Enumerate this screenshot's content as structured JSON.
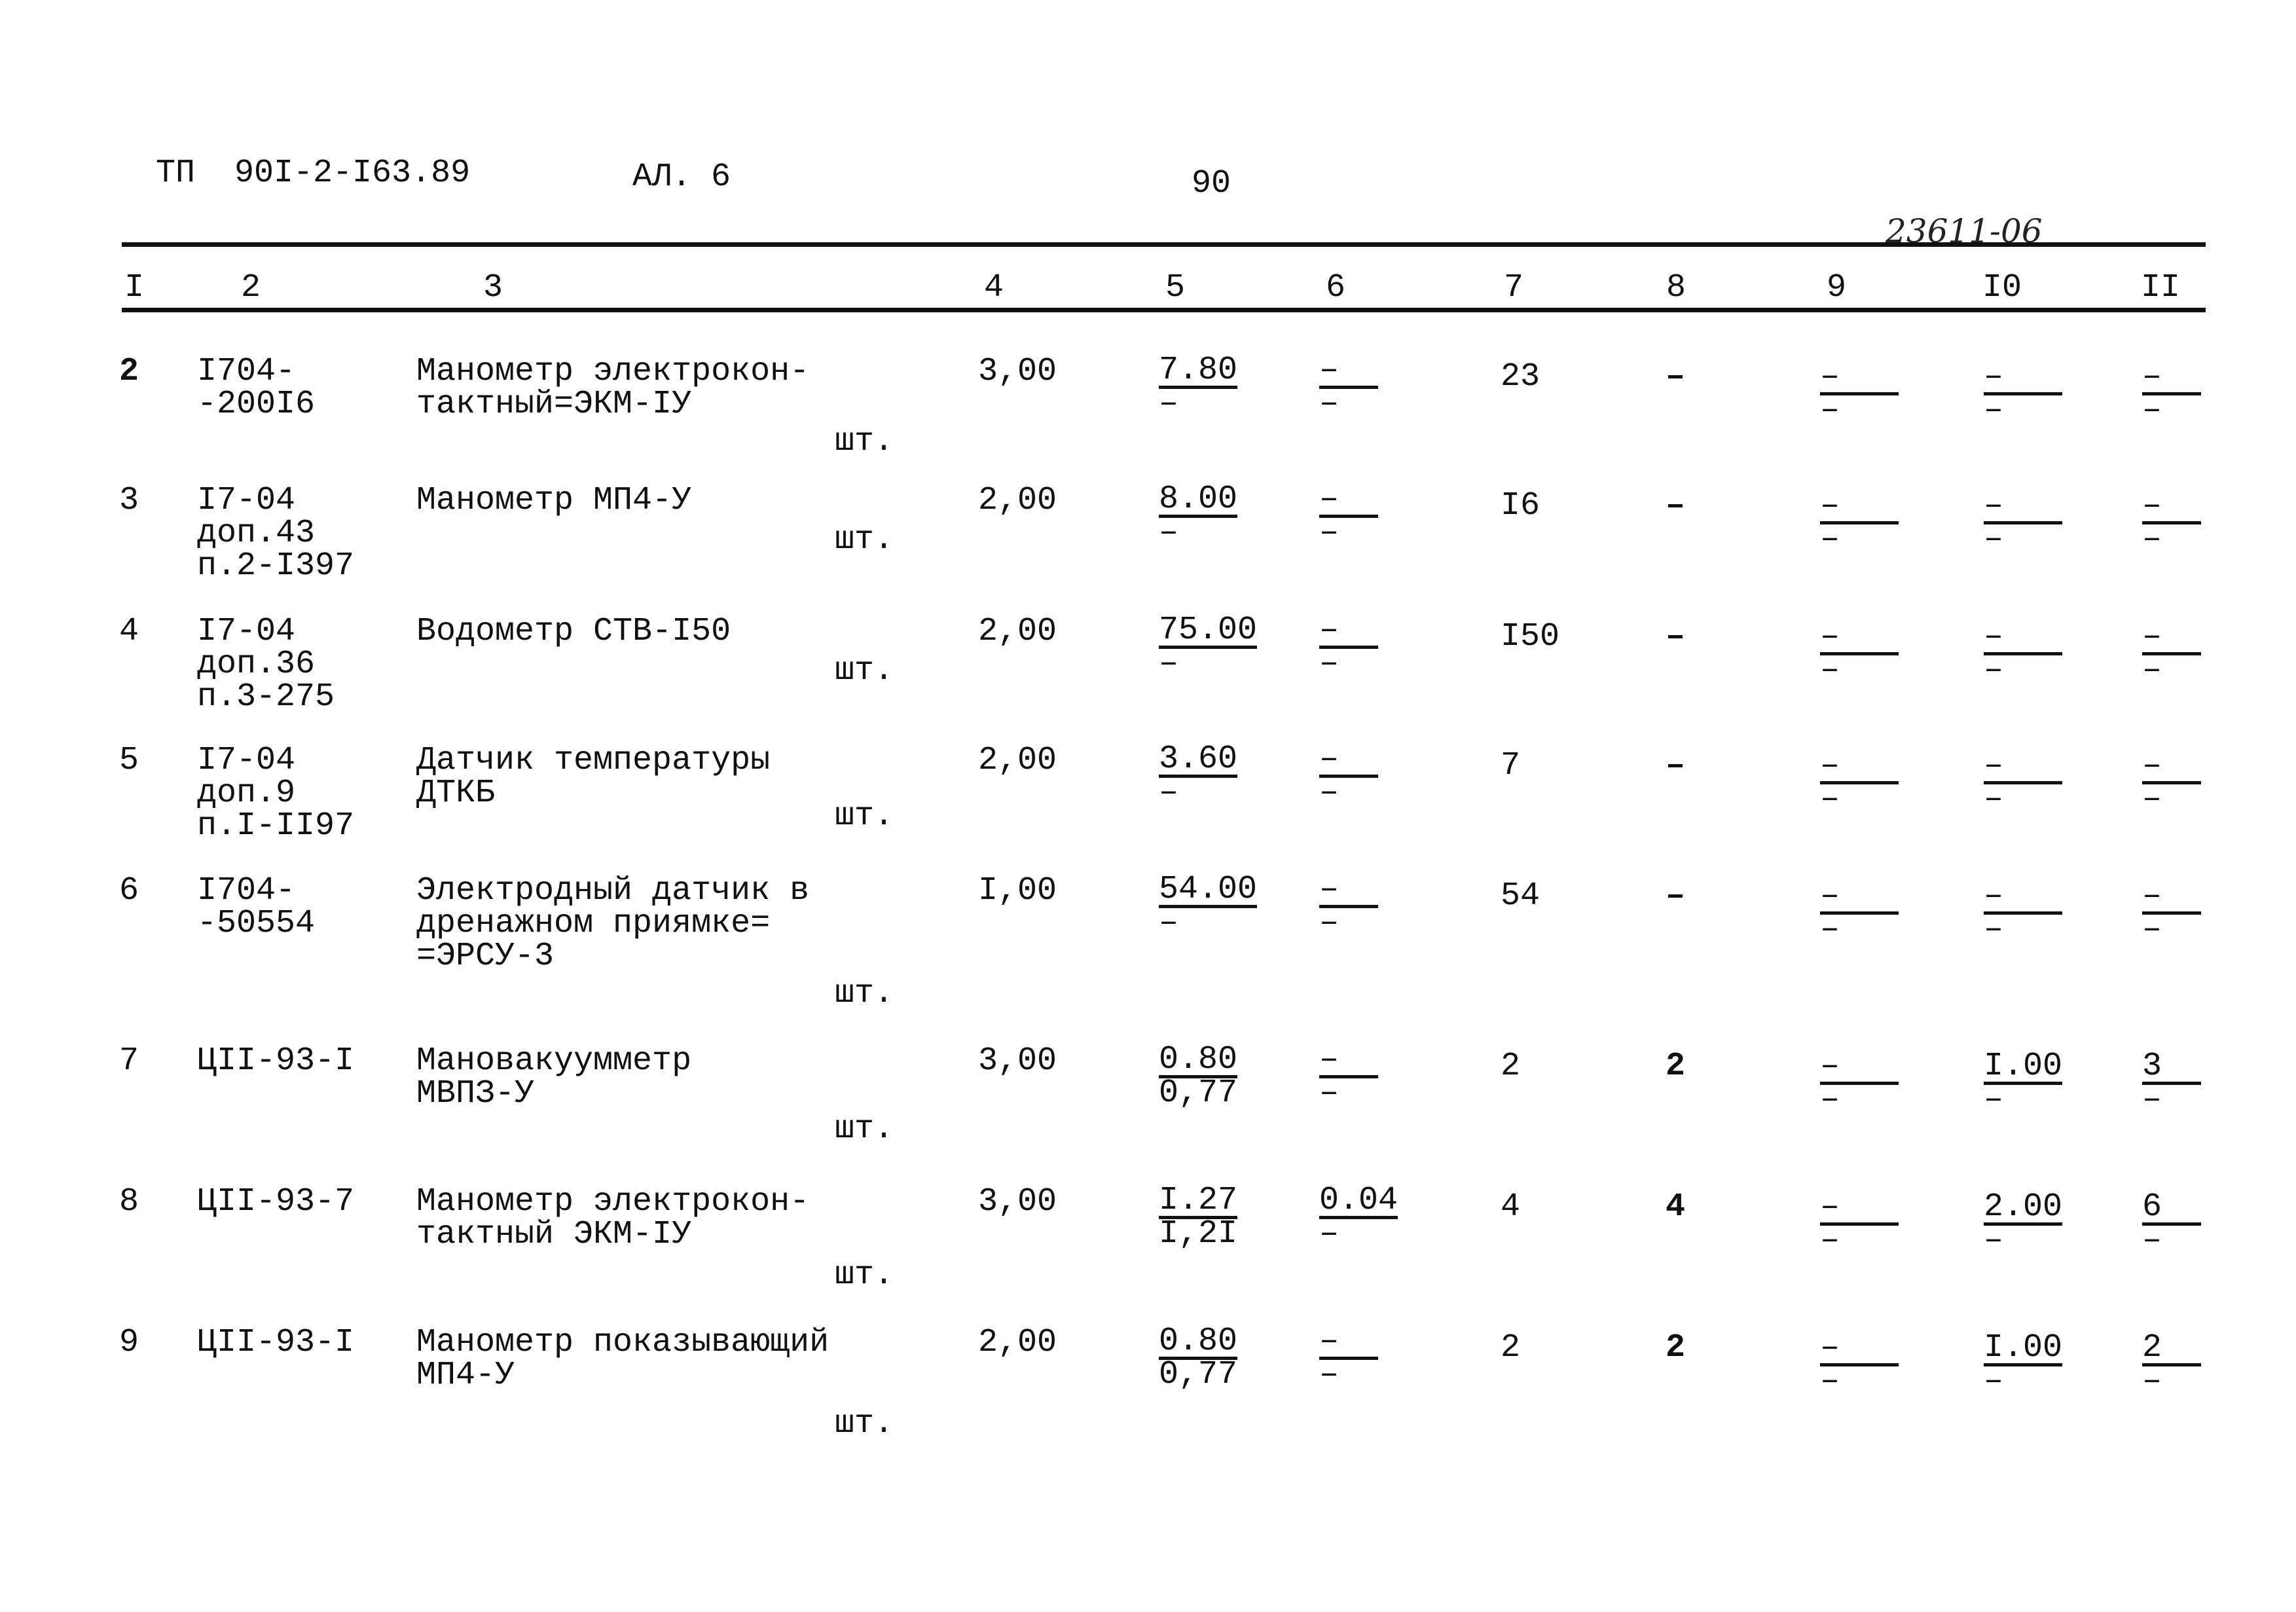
{
  "header": {
    "doc_code": "ТП  90I-2-I63.89",
    "sheet": "АЛ. 6",
    "page_number": "90",
    "handwritten_number": "23611-06"
  },
  "columns": [
    "I",
    "2",
    "3",
    "4",
    "5",
    "6",
    "7",
    "8",
    "9",
    "I0",
    "II"
  ],
  "rows": [
    {
      "n": "2",
      "code": [
        "I704-",
        "-200I6"
      ],
      "name": [
        "Манометр электрокон-",
        "тактный=ЭКМ-IУ"
      ],
      "unit": "шт.",
      "c4": "3,00",
      "c5": {
        "num": "7.80",
        "den": "–"
      },
      "c6": {
        "num": "–",
        "den": "–"
      },
      "c7": "23",
      "c8": "–",
      "c9": {
        "num": "–",
        "den": "–"
      },
      "c10": {
        "num": "–",
        "den": "–"
      },
      "c11": {
        "num": "–",
        "den": "–"
      }
    },
    {
      "n": "3",
      "code": [
        "I7-04",
        "доп.43",
        "п.2-I397"
      ],
      "name": [
        "Манометр МП4-У"
      ],
      "unit": "шт.",
      "c4": "2,00",
      "c5": {
        "num": "8.00",
        "den": "–"
      },
      "c6": {
        "num": "–",
        "den": "–"
      },
      "c7": "I6",
      "c8": "–",
      "c9": {
        "num": "–",
        "den": "–"
      },
      "c10": {
        "num": "–",
        "den": "–"
      },
      "c11": {
        "num": "–",
        "den": "–"
      }
    },
    {
      "n": "4",
      "code": [
        "I7-04",
        "доп.36",
        "п.3-275"
      ],
      "name": [
        "Водометр СТВ-I50"
      ],
      "unit": "шт.",
      "c4": "2,00",
      "c5": {
        "num": "75.00",
        "den": "–"
      },
      "c6": {
        "num": "–",
        "den": "–"
      },
      "c7": "I50",
      "c8": "–",
      "c9": {
        "num": "–",
        "den": "–"
      },
      "c10": {
        "num": "–",
        "den": "–"
      },
      "c11": {
        "num": "–",
        "den": "–"
      }
    },
    {
      "n": "5",
      "code": [
        "I7-04",
        "доп.9",
        "п.I-II97"
      ],
      "name": [
        "Датчик температуры",
        "ДТКБ"
      ],
      "unit": "шт.",
      "c4": "2,00",
      "c5": {
        "num": "3.60",
        "den": "–"
      },
      "c6": {
        "num": "–",
        "den": "–"
      },
      "c7": "7",
      "c8": "–",
      "c9": {
        "num": "–",
        "den": "–"
      },
      "c10": {
        "num": "–",
        "den": "–"
      },
      "c11": {
        "num": "–",
        "den": "–"
      }
    },
    {
      "n": "6",
      "code": [
        "I704-",
        "-50554"
      ],
      "name": [
        "Электродный датчик в",
        "дренажном приямке=",
        "=ЭРСУ-3"
      ],
      "unit": "шт.",
      "c4": "I,00",
      "c5": {
        "num": "54.00",
        "den": "–"
      },
      "c6": {
        "num": "–",
        "den": "–"
      },
      "c7": "54",
      "c8": "–",
      "c9": {
        "num": "–",
        "den": "–"
      },
      "c10": {
        "num": "–",
        "den": "–"
      },
      "c11": {
        "num": "–",
        "den": "–"
      }
    },
    {
      "n": "7",
      "code": [
        "ЦII-93-I"
      ],
      "name": [
        "Мановакуумметр",
        "МВПЗ-У"
      ],
      "unit": "шт.",
      "c4": "3,00",
      "c5": {
        "num": "0.80",
        "den": "0,77"
      },
      "c6": {
        "num": "–",
        "den": "–"
      },
      "c7": "2",
      "c8": "2",
      "c9": {
        "num": "–",
        "den": "–"
      },
      "c10": {
        "num": "I.00",
        "den": "–"
      },
      "c11": {
        "num": "3",
        "den": "–"
      }
    },
    {
      "n": "8",
      "code": [
        "ЦII-93-7"
      ],
      "name": [
        "Манометр электрокон-",
        "тактный ЭКМ-IУ"
      ],
      "unit": "шт.",
      "c4": "3,00",
      "c5": {
        "num": "I.27",
        "den": "I,2I"
      },
      "c6": {
        "num": "0.04",
        "den": "–"
      },
      "c7": "4",
      "c8": "4",
      "c9": {
        "num": "–",
        "den": "–"
      },
      "c10": {
        "num": "2.00",
        "den": "–"
      },
      "c11": {
        "num": "6",
        "den": "–"
      }
    },
    {
      "n": "9",
      "code": [
        "ЦII-93-I"
      ],
      "name": [
        "Манометр показывающий",
        "МП4-У"
      ],
      "unit": "шт.",
      "c4": "2,00",
      "c5": {
        "num": "0.80",
        "den": "0,77"
      },
      "c6": {
        "num": "–",
        "den": "–"
      },
      "c7": "2",
      "c8": "2",
      "c9": {
        "num": "–",
        "den": "–"
      },
      "c10": {
        "num": "I.00",
        "den": "–"
      },
      "c11": {
        "num": "2",
        "den": "–"
      }
    }
  ]
}
